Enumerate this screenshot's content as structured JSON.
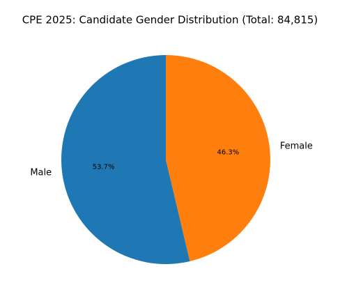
{
  "chart_data": {
    "type": "pie",
    "title": "CPE 2025: Candidate Gender Distribution (Total: 84,815)",
    "categories": [
      "Male",
      "Female"
    ],
    "values": [
      53.7,
      46.3
    ],
    "value_labels": [
      "53.7%",
      "46.3%"
    ],
    "colors": [
      "#1f77b4",
      "#ff7f0e"
    ],
    "start_angle": 90,
    "counterclock": true
  }
}
